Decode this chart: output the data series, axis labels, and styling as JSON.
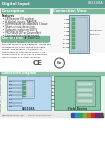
{
  "bg_color": "#ffffff",
  "header_color": "#5a9e8e",
  "header_text_color": "#ffffff",
  "header_left_text": "Digital Input",
  "header_right_text": "LB1108A",
  "top_bg": "#f0f0f0",
  "section_bar_color": "#7ab89a",
  "section_bar_text": "#ffffff",
  "desc_section_label": "Description",
  "conn_view_label": "Connection View",
  "conn_section_label": "Connection",
  "body_color": "#303030",
  "green_light_bg": "#e8f5ee",
  "mid_sep_color": "#b8d8c8",
  "ce_mark_color": "#606060",
  "bottom_header_color": "#7ab89a",
  "bottom_header_label": "Connection Diagram",
  "bottom_bg": "#e8f5ee",
  "blue_box": "#b8d8f0",
  "blue_box_border": "#7090b0",
  "green_box": "#88c4a8",
  "green_box_border": "#408060",
  "device_fg": "#c0d8e8",
  "device_border": "#5080a0",
  "led_green": "#60b870",
  "led_border": "#307040",
  "wire_color": "#505050",
  "footer_bg": "#e8e8e8",
  "footer_text": "#505050",
  "color_bar": [
    "#3050b0",
    "#3090b0",
    "#30a060",
    "#a0a030",
    "#c07030",
    "#c03030",
    "#802080",
    "#484848"
  ],
  "page_num": "1"
}
